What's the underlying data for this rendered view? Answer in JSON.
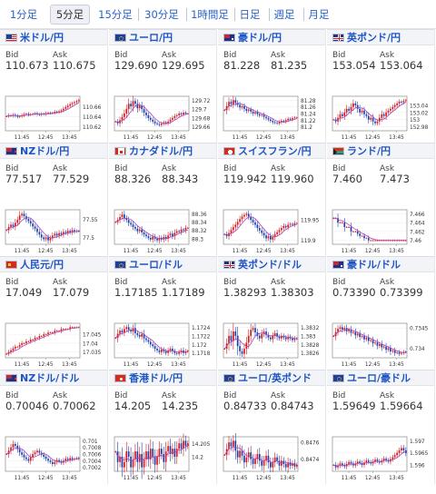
{
  "tabs": [
    {
      "label": "1分足",
      "active": false
    },
    {
      "label": "5分足",
      "active": true
    },
    {
      "label": "15分足",
      "active": false
    },
    {
      "label": "30分足",
      "active": false
    },
    {
      "label": "1時間足",
      "active": false
    },
    {
      "label": "日足",
      "active": false
    },
    {
      "label": "週足",
      "active": false
    },
    {
      "label": "月足",
      "active": false
    }
  ],
  "labels": {
    "bid": "Bid",
    "ask": "Ask"
  },
  "colors": {
    "link": "#1e55c4",
    "up": "#d61a1a",
    "down": "#1c3fae",
    "ma": "#b040c0",
    "header_bg": "#f3f4f7"
  },
  "panels": [
    {
      "pair": "米ドル/円",
      "flag_icon": "us-flag-icon",
      "bid": "110.673",
      "ask": "110.675",
      "chart_data": {
        "type": "candlestick",
        "x_ticks": [
          "11:45",
          "12:45",
          "13:45"
        ],
        "y_ticks": [
          "110.66",
          "110.64",
          "110.62"
        ],
        "closes": [
          110.641,
          110.643,
          110.642,
          110.644,
          110.642,
          110.64,
          110.641,
          110.643,
          110.645,
          110.646,
          110.644,
          110.645,
          110.646,
          110.647,
          110.645,
          110.644,
          110.646,
          110.645,
          110.647,
          110.648,
          110.647,
          110.648,
          110.65,
          110.649,
          110.651,
          110.653,
          110.656,
          110.659,
          110.662,
          110.665,
          110.667,
          110.669,
          110.671,
          110.673
        ]
      }
    },
    {
      "pair": "ユーロ/円",
      "flag_icon": "eu-flag-icon",
      "bid": "129.690",
      "ask": "129.695",
      "chart_data": {
        "type": "candlestick",
        "x_ticks": [
          "11:45",
          "12:45",
          "13:45"
        ],
        "y_ticks": [
          "129.72",
          "129.7",
          "129.68",
          "129.66"
        ],
        "closes": [
          129.672,
          129.668,
          129.675,
          129.682,
          129.69,
          129.7,
          129.712,
          129.706,
          129.718,
          129.712,
          129.702,
          129.708,
          129.7,
          129.692,
          129.686,
          129.68,
          129.676,
          129.672,
          129.668,
          129.666,
          129.664,
          129.667,
          129.67,
          129.668,
          129.672,
          129.676,
          129.68,
          129.684,
          129.686,
          129.69,
          129.688,
          129.692,
          129.69,
          129.69
        ]
      }
    },
    {
      "pair": "豪ドル/円",
      "flag_icon": "au-flag-icon",
      "bid": "81.228",
      "ask": "81.235",
      "chart_data": {
        "type": "candlestick",
        "x_ticks": [
          "11:45",
          "12:45",
          "13:45"
        ],
        "y_ticks": [
          "81.28",
          "81.26",
          "81.24",
          "81.22",
          "81.2"
        ],
        "closes": [
          81.25,
          81.262,
          81.275,
          81.268,
          81.28,
          81.272,
          81.266,
          81.258,
          81.262,
          81.254,
          81.248,
          81.252,
          81.246,
          81.24,
          81.244,
          81.238,
          81.234,
          81.236,
          81.23,
          81.226,
          81.222,
          81.218,
          81.214,
          81.212,
          81.21,
          81.214,
          81.218,
          81.216,
          81.22,
          81.224,
          81.222,
          81.226,
          81.228,
          81.228
        ]
      }
    },
    {
      "pair": "英ポンド/円",
      "flag_icon": "gb-flag-icon",
      "bid": "153.054",
      "ask": "153.064",
      "chart_data": {
        "type": "candlestick",
        "x_ticks": [
          "11:45",
          "12:45",
          "13:45"
        ],
        "y_ticks": [
          "153.04",
          "153.02",
          "153",
          "152.98"
        ],
        "closes": [
          153.0,
          152.995,
          153.005,
          153.015,
          153.01,
          153.02,
          153.03,
          153.025,
          153.035,
          153.045,
          153.04,
          153.03,
          153.02,
          153.025,
          153.015,
          153.01,
          153.0,
          153.005,
          152.995,
          152.99,
          152.995,
          153.005,
          153.015,
          153.01,
          153.02,
          153.025,
          153.03,
          153.035,
          153.04,
          153.045,
          153.05,
          153.048,
          153.052,
          153.054
        ]
      }
    },
    {
      "pair": "NZドル/円",
      "flag_icon": "nz-flag-icon",
      "bid": "77.517",
      "ask": "77.529",
      "chart_data": {
        "type": "candlestick",
        "x_ticks": [
          "11:45",
          "12:45",
          "13:45"
        ],
        "y_ticks": [
          "77.55",
          "77.5"
        ],
        "closes": [
          77.52,
          77.528,
          77.535,
          77.53,
          77.54,
          77.548,
          77.56,
          77.565,
          77.558,
          77.55,
          77.545,
          77.538,
          77.53,
          77.524,
          77.515,
          77.508,
          77.5,
          77.495,
          77.5,
          77.492,
          77.498,
          77.505,
          77.51,
          77.505,
          77.512,
          77.508,
          77.515,
          77.512,
          77.518,
          77.514,
          77.52,
          77.516,
          77.518,
          77.517
        ]
      }
    },
    {
      "pair": "カナダドル/円",
      "flag_icon": "ca-flag-icon",
      "bid": "88.326",
      "ask": "88.343",
      "chart_data": {
        "type": "candlestick",
        "x_ticks": [
          "11:45",
          "12:45",
          "13:45"
        ],
        "y_ticks": [
          "88.36",
          "88.34",
          "88.32",
          "88.3"
        ],
        "closes": [
          88.34,
          88.345,
          88.352,
          88.358,
          88.35,
          88.345,
          88.338,
          88.334,
          88.328,
          88.324,
          88.318,
          88.322,
          88.315,
          88.31,
          88.306,
          88.302,
          88.298,
          88.305,
          88.3,
          88.296,
          88.302,
          88.298,
          88.304,
          88.3,
          88.308,
          88.312,
          88.306,
          88.314,
          88.318,
          88.316,
          88.322,
          88.32,
          88.326,
          88.326
        ]
      }
    },
    {
      "pair": "スイスフラン/円",
      "flag_icon": "ch-flag-icon",
      "bid": "119.942",
      "ask": "119.960",
      "chart_data": {
        "type": "candlestick",
        "x_ticks": [
          "11:45",
          "12:45",
          "13:45"
        ],
        "y_ticks": [
          "119.95",
          "119.9"
        ],
        "closes": [
          119.915,
          119.91,
          119.918,
          119.925,
          119.932,
          119.938,
          119.945,
          119.952,
          119.958,
          119.962,
          119.965,
          119.958,
          119.95,
          119.944,
          119.938,
          119.93,
          119.924,
          119.918,
          119.912,
          119.905,
          119.91,
          119.902,
          119.908,
          119.915,
          119.92,
          119.925,
          119.93,
          119.935,
          119.932,
          119.938,
          119.94,
          119.938,
          119.942,
          119.942
        ]
      }
    },
    {
      "pair": "ランド/円",
      "flag_icon": "za-flag-icon",
      "bid": "7.460",
      "ask": "7.473",
      "chart_data": {
        "type": "candlestick",
        "x_ticks": [
          "11:45",
          "12:45",
          "13:45"
        ],
        "y_ticks": [
          "7.466",
          "7.464",
          "7.462",
          "7.46"
        ],
        "closes": [
          7.465,
          7.465,
          7.464,
          7.464,
          7.464,
          7.463,
          7.463,
          7.463,
          7.462,
          7.462,
          7.462,
          7.4615,
          7.461,
          7.461,
          7.4605,
          7.4605,
          7.46,
          7.46,
          7.46,
          7.46,
          7.46,
          7.46,
          7.46,
          7.46,
          7.46,
          7.46,
          7.46,
          7.46,
          7.46,
          7.46,
          7.46,
          7.46,
          7.46,
          7.46
        ]
      }
    },
    {
      "pair": "人民元/円",
      "flag_icon": "cn-flag-icon",
      "bid": "17.049",
      "ask": "17.079",
      "chart_data": {
        "type": "candlestick",
        "x_ticks": [
          "11:45",
          "12:45",
          "13:45"
        ],
        "y_ticks": [
          "17.045",
          "17.04",
          "17.035"
        ],
        "closes": [
          17.034,
          17.035,
          17.036,
          17.037,
          17.038,
          17.038,
          17.039,
          17.04,
          17.04,
          17.041,
          17.041,
          17.042,
          17.042,
          17.043,
          17.043,
          17.044,
          17.044,
          17.045,
          17.045,
          17.046,
          17.046,
          17.046,
          17.047,
          17.047,
          17.047,
          17.048,
          17.048,
          17.048,
          17.048,
          17.049,
          17.049,
          17.049,
          17.049,
          17.049
        ]
      }
    },
    {
      "pair": "ユーロ/ドル",
      "flag_icon": "eu-flag-icon",
      "bid": "1.17185",
      "ask": "1.17189",
      "chart_data": {
        "type": "candlestick",
        "x_ticks": [
          "11:45",
          "12:45",
          "13:45"
        ],
        "y_ticks": [
          "1.1724",
          "1.1722",
          "1.172",
          "1.1718"
        ],
        "closes": [
          1.17215,
          1.17225,
          1.17232,
          1.17228,
          1.17236,
          1.1724,
          1.17234,
          1.1723,
          1.17238,
          1.17226,
          1.17222,
          1.17218,
          1.17224,
          1.17214,
          1.1721,
          1.17206,
          1.172,
          1.17196,
          1.1719,
          1.17186,
          1.17182,
          1.17188,
          1.17184,
          1.1718,
          1.17186,
          1.1719,
          1.17184,
          1.1718,
          1.17178,
          1.17182,
          1.17186,
          1.1718,
          1.17184,
          1.17185
        ]
      }
    },
    {
      "pair": "英ポンド/ドル",
      "flag_icon": "gb-flag-icon",
      "bid": "1.38293",
      "ask": "1.38303",
      "chart_data": {
        "type": "candlestick",
        "x_ticks": [
          "11:45",
          "12:45",
          "13:45"
        ],
        "y_ticks": [
          "1.3832",
          "1.383",
          "1.3828",
          "1.3826"
        ],
        "closes": [
          1.3827,
          1.38282,
          1.383,
          1.38288,
          1.3831,
          1.383,
          1.38276,
          1.38264,
          1.38258,
          1.3827,
          1.38284,
          1.383,
          1.38314,
          1.38318,
          1.38308,
          1.383,
          1.38294,
          1.38304,
          1.3831,
          1.38302,
          1.38296,
          1.38292,
          1.383,
          1.38306,
          1.38298,
          1.38294,
          1.383,
          1.38296,
          1.38292,
          1.38298,
          1.38294,
          1.3829,
          1.38294,
          1.38293
        ]
      }
    },
    {
      "pair": "豪ドル/ドル",
      "flag_icon": "au-flag-icon",
      "bid": "0.73390",
      "ask": "0.73399",
      "chart_data": {
        "type": "candlestick",
        "x_ticks": [
          "11:45",
          "12:45",
          "13:45"
        ],
        "y_ticks": [
          "0.7345",
          "0.734"
        ],
        "closes": [
          0.7343,
          0.7344,
          0.73448,
          0.73452,
          0.73446,
          0.7345,
          0.73442,
          0.73446,
          0.73438,
          0.7344,
          0.73432,
          0.73436,
          0.73428,
          0.7343,
          0.73422,
          0.73426,
          0.73418,
          0.7342,
          0.73412,
          0.73414,
          0.73406,
          0.7341,
          0.73402,
          0.73404,
          0.73396,
          0.734,
          0.73392,
          0.73394,
          0.73388,
          0.7339,
          0.73386,
          0.73388,
          0.73391,
          0.7339
        ]
      }
    },
    {
      "pair": "NZドル/ドル",
      "flag_icon": "nz-flag-icon",
      "bid": "0.70046",
      "ask": "0.70062",
      "chart_data": {
        "type": "candlestick",
        "x_ticks": [
          "11:45",
          "12:45",
          "13:45"
        ],
        "y_ticks": [
          "0.7010",
          "0.7008",
          "0.7006",
          "0.7004",
          "0.7002"
        ],
        "closes": [
          0.7006,
          0.7007,
          0.7008,
          0.7009,
          0.70085,
          0.70075,
          0.70065,
          0.70058,
          0.7005,
          0.70045,
          0.7004,
          0.7005,
          0.7006,
          0.70065,
          0.7007,
          0.70064,
          0.70058,
          0.70052,
          0.70046,
          0.7004,
          0.70036,
          0.7003,
          0.70036,
          0.70042,
          0.70038,
          0.70034,
          0.7004,
          0.70046,
          0.70042,
          0.70048,
          0.70044,
          0.70046,
          0.70048,
          0.70046
        ]
      }
    },
    {
      "pair": "香港ドル/円",
      "flag_icon": "hk-flag-icon",
      "bid": "14.205",
      "ask": "14.235",
      "chart_data": {
        "type": "candlestick",
        "x_ticks": [
          "11:45",
          "12:45",
          "13:45"
        ],
        "y_ticks": [
          "14.205",
          "14.2"
        ],
        "closes": [
          14.202,
          14.198,
          14.2,
          14.196,
          14.198,
          14.202,
          14.2,
          14.196,
          14.199,
          14.202,
          14.198,
          14.201,
          14.196,
          14.199,
          14.202,
          14.199,
          14.203,
          14.2,
          14.197,
          14.2,
          14.203,
          14.201,
          14.198,
          14.202,
          14.204,
          14.201,
          14.203,
          14.2,
          14.203,
          14.205,
          14.203,
          14.206,
          14.204,
          14.205
        ]
      }
    },
    {
      "pair": "ユーロ/英ポンド",
      "flag_icon": "eu-flag-icon",
      "bid": "0.84733",
      "ask": "0.84743",
      "chart_data": {
        "type": "candlestick",
        "x_ticks": [
          "11:45",
          "12:45",
          "13:45"
        ],
        "y_ticks": [
          "0.8476",
          "0.8474"
        ],
        "closes": [
          0.84745,
          0.84752,
          0.8476,
          0.84755,
          0.84762,
          0.8475,
          0.84742,
          0.8475,
          0.84744,
          0.84736,
          0.84742,
          0.84748,
          0.8474,
          0.84734,
          0.8474,
          0.84746,
          0.84738,
          0.84732,
          0.84738,
          0.84744,
          0.84736,
          0.8473,
          0.84736,
          0.84742,
          0.84738,
          0.84732,
          0.84738,
          0.84734,
          0.8473,
          0.84736,
          0.84732,
          0.84735,
          0.84731,
          0.84733
        ]
      }
    },
    {
      "pair": "ユーロ/豪ドル",
      "flag_icon": "eu-flag-icon",
      "bid": "1.59649",
      "ask": "1.59664",
      "chart_data": {
        "type": "candlestick",
        "x_ticks": [
          "11:45",
          "12:45",
          "13:45"
        ],
        "y_ticks": [
          "1.597",
          "1.5965",
          "1.596"
        ],
        "closes": [
          1.596,
          1.5959,
          1.59598,
          1.59606,
          1.596,
          1.59594,
          1.59604,
          1.59612,
          1.59606,
          1.59598,
          1.59606,
          1.59614,
          1.59608,
          1.596,
          1.5961,
          1.59618,
          1.59612,
          1.59606,
          1.59614,
          1.59622,
          1.59616,
          1.5961,
          1.59618,
          1.59626,
          1.5962,
          1.59614,
          1.59624,
          1.59632,
          1.5964,
          1.5965,
          1.5966,
          1.5967,
          1.5966,
          1.59649
        ]
      }
    }
  ]
}
